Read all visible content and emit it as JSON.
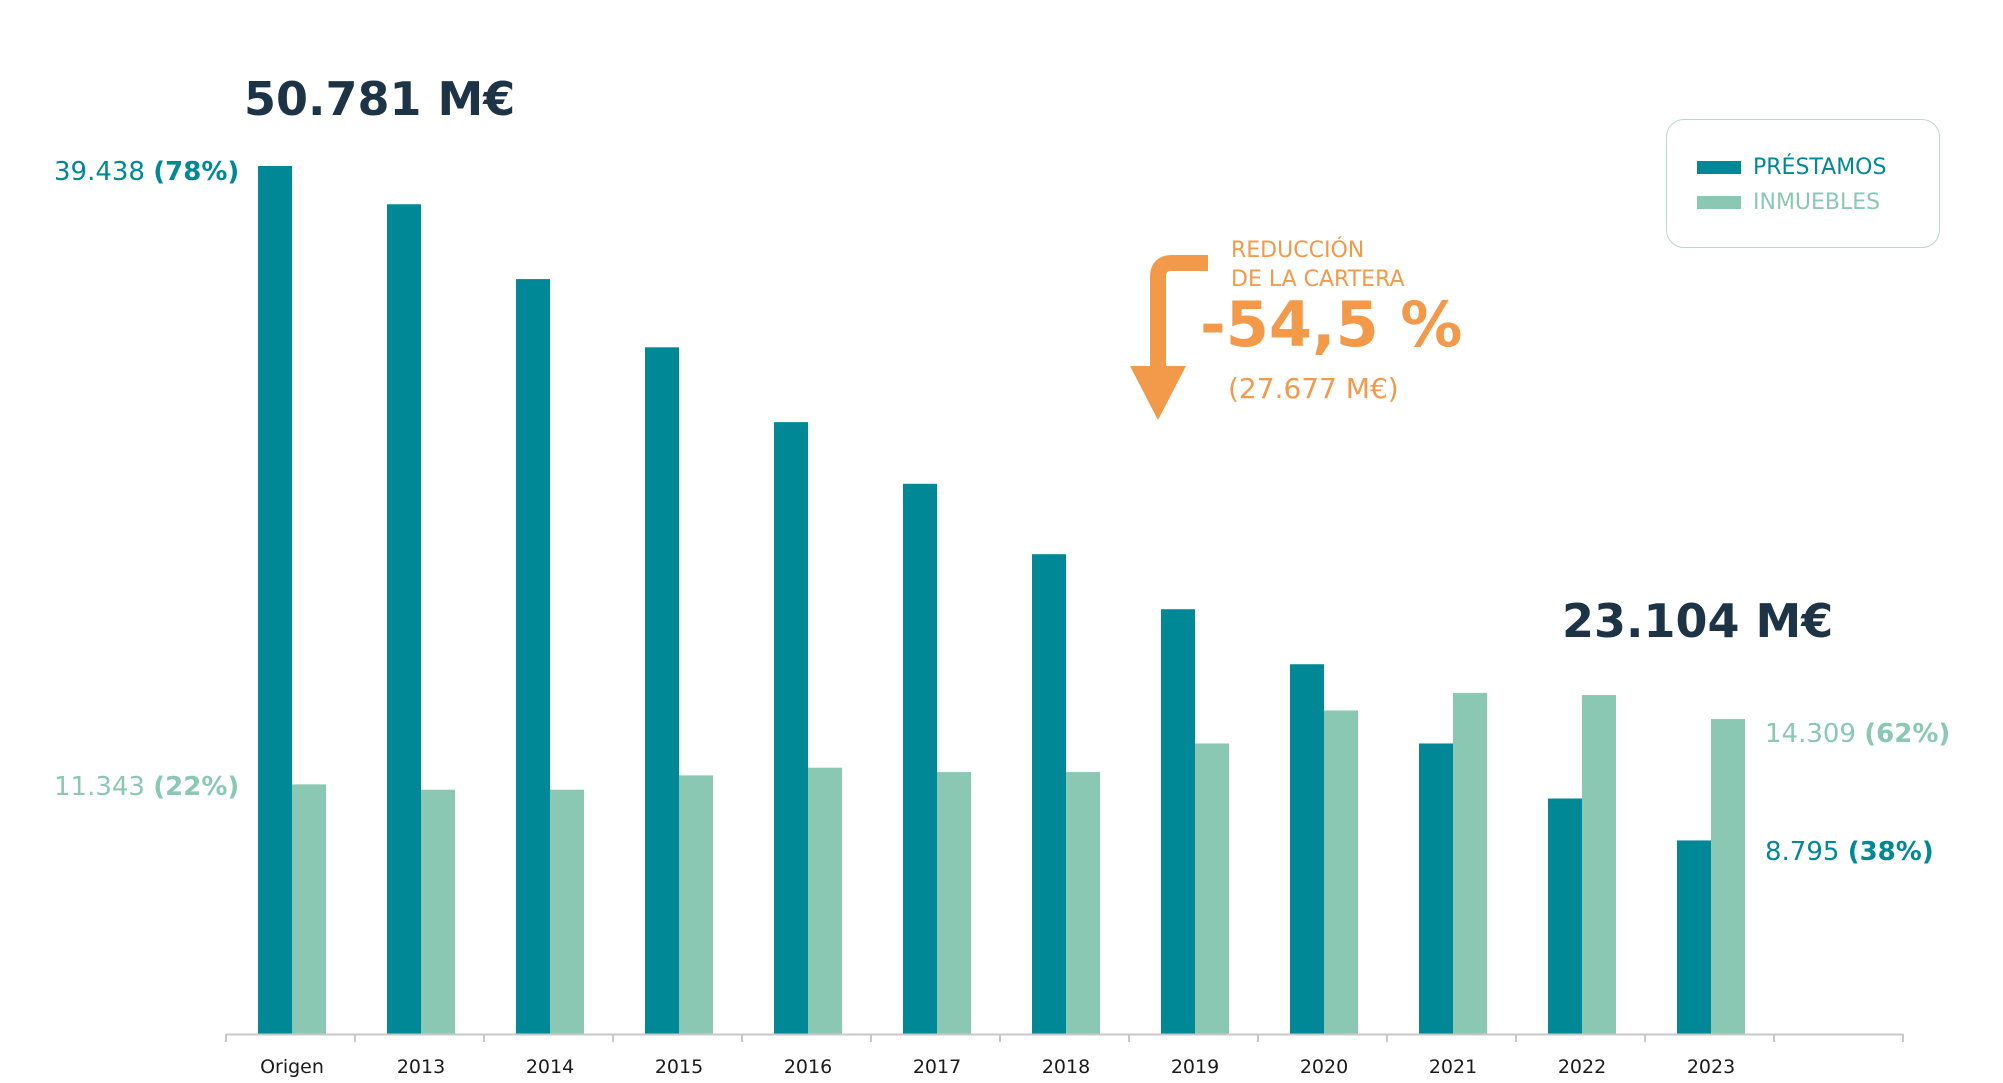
{
  "colors": {
    "prestamos": "#008896",
    "inmuebles": "#8ac8b3",
    "accent": "#f2994a",
    "total": "#1d3447",
    "axis": "#c8c8c8"
  },
  "totals": {
    "start": "50.781 M€",
    "end": "23.104 M€"
  },
  "annotations": {
    "origen_prestamos": {
      "value": "39.438",
      "pct": "(78%)"
    },
    "origen_inmuebles": {
      "value": "11.343",
      "pct": "(22%)"
    },
    "final_inmuebles": {
      "value": "14.309",
      "pct": "(62%)"
    },
    "final_prestamos": {
      "value": "8.795",
      "pct": "(38%)"
    }
  },
  "reduction": {
    "title_line1": "REDUCCIÓN",
    "title_line2": "DE LA CARTERA",
    "pct": "-54,5 %",
    "amount": "(27.677 M€)"
  },
  "chart_data": {
    "type": "bar",
    "categories": [
      "Origen",
      "2013",
      "2014",
      "2015",
      "2016",
      "2017",
      "2018",
      "2019",
      "2020",
      "2021",
      "2022",
      "2023"
    ],
    "series": [
      {
        "name": "PRÉSTAMOS",
        "values": [
          39438,
          37700,
          34300,
          31200,
          27800,
          25000,
          21800,
          19300,
          16800,
          13200,
          10700,
          8795
        ]
      },
      {
        "name": "INMUEBLES",
        "values": [
          11343,
          11100,
          11100,
          11750,
          12100,
          11900,
          11900,
          13200,
          14700,
          15500,
          15400,
          14309
        ]
      }
    ],
    "legend_position": "top-right",
    "grid": false
  }
}
